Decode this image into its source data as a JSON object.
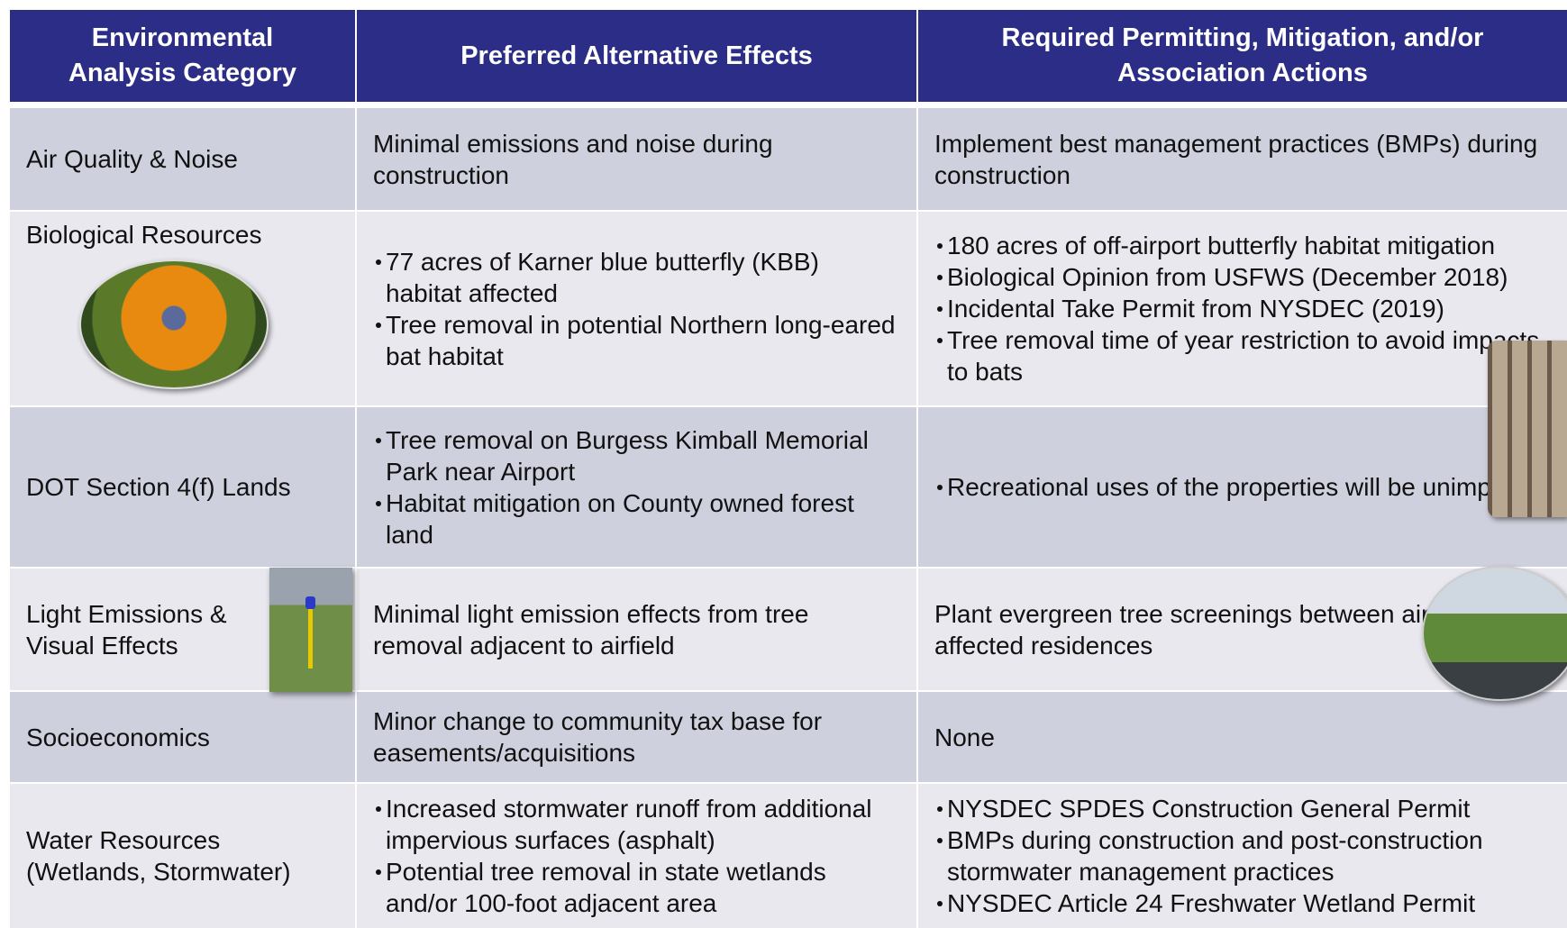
{
  "table": {
    "header": [
      "Environmental Analysis Category",
      "Preferred Alternative Effects",
      "Required Permitting, Mitigation, and/or Association Actions"
    ],
    "rows": [
      [
        "Air Quality & Noise",
        "Minimal emissions and noise during construction",
        "Implement best management practices (BMPs) during construction"
      ],
      [
        "Biological Resources",
        [
          "77 acres of Karner blue butterfly (KBB) habitat affected",
          "Tree removal in potential Northern long-eared bat habitat"
        ],
        [
          "180 acres of off-airport butterfly habitat mitigation",
          "Biological Opinion from USFWS (December 2018)",
          "Incidental Take Permit from NYSDEC (2019)",
          "Tree removal time of year restriction to avoid impacts to bats"
        ]
      ],
      [
        "DOT Section 4(f) Lands",
        [
          "Tree removal on Burgess Kimball Memorial Park near Airport",
          "Habitat mitigation on County owned forest land"
        ],
        [
          "Recreational uses of the properties will be unimpeded"
        ]
      ],
      [
        "Light Emissions & Visual Effects",
        "Minimal light emission effects from tree removal adjacent to airfield",
        "Plant evergreen tree screenings between airfield and affected residences"
      ],
      [
        "Socioeconomics",
        "Minor change to community tax base for easements/acquisitions",
        "None"
      ],
      [
        "Water Resources (Wetlands, Stormwater)",
        [
          "Increased stormwater runoff from additional impervious surfaces (asphalt)",
          "Potential tree removal in state wetlands and/or 100-foot adjacent area"
        ],
        [
          "NYSDEC SPDES Construction General Permit",
          "BMPs during construction and post-construction stormwater management practices",
          "NYSDEC Article 24 Freshwater Wetland Permit"
        ]
      ]
    ]
  }
}
